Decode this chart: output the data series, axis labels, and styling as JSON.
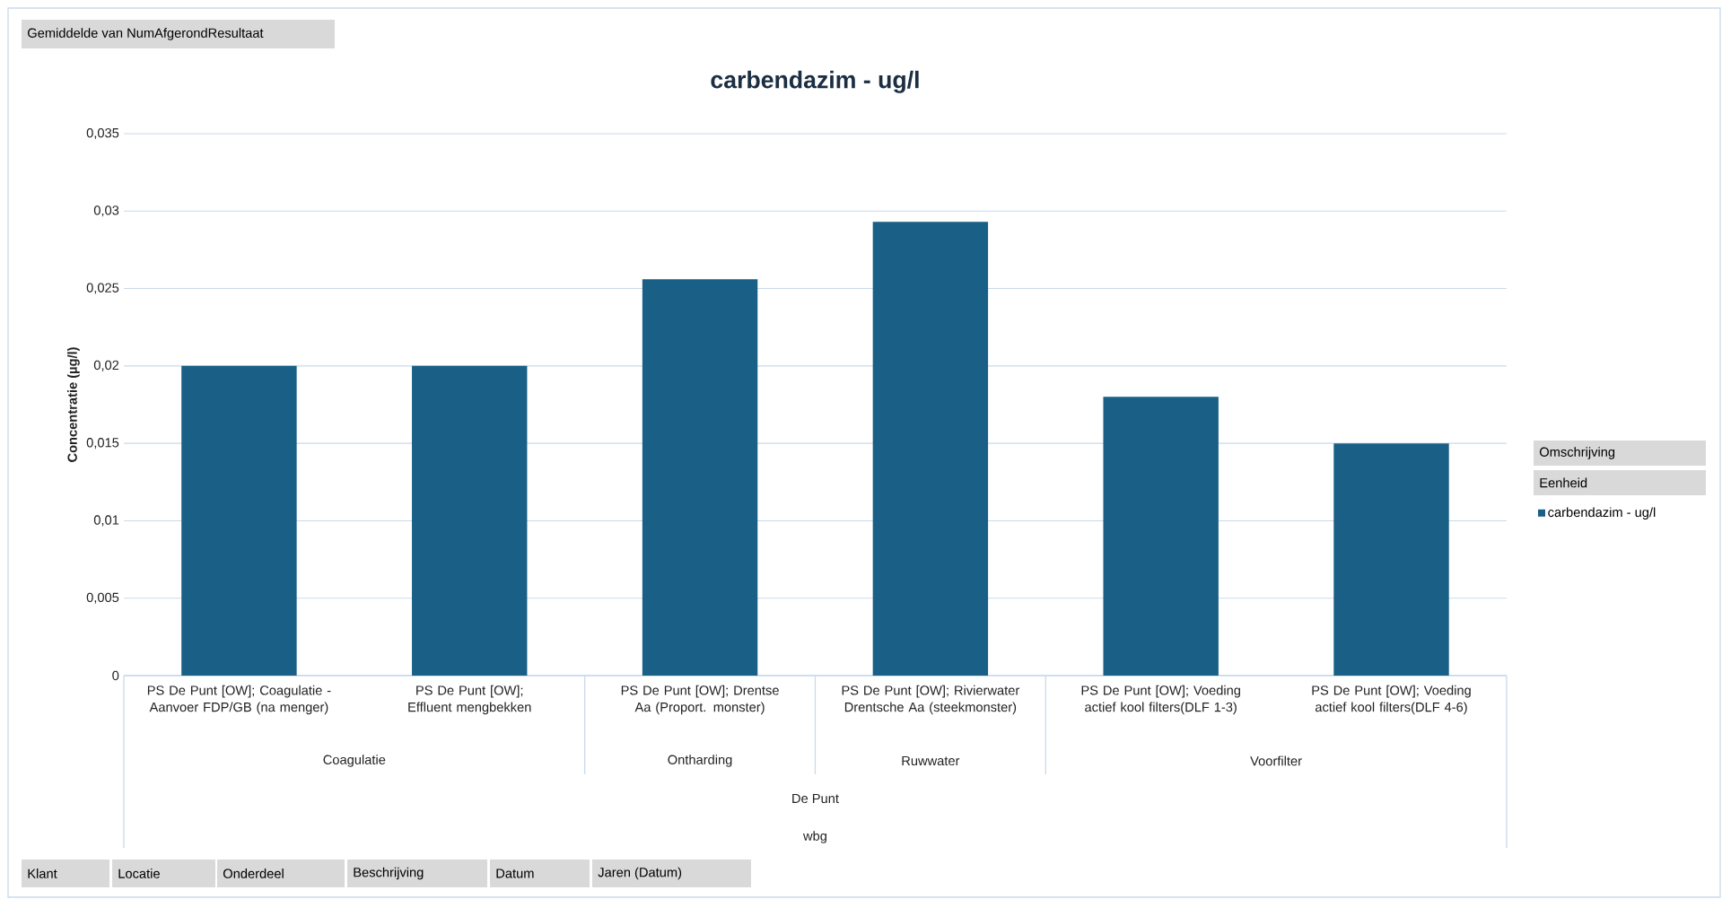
{
  "chart_data": {
    "type": "bar",
    "title": "carbendazim - ug/l",
    "ylabel": "Concentratie (µg/l)",
    "categories": [
      "PS De Punt [OW]; Coagulatie - Aanvoer FDP/GB (na menger)",
      "PS De Punt [OW]; Effluent mengbekken",
      "PS De Punt [OW]; Drentse Aa (Proport. monster)",
      "PS De Punt [OW]; Rivierwater Drentsche Aa (steekmonster)",
      "PS De Punt [OW]; Voeding actief kool filters(DLF 1-3)",
      "PS De Punt [OW]; Voeding actief kool filters(DLF 4-6)"
    ],
    "series": [
      {
        "name": "carbendazim - ug/l",
        "color": "#1a5f86",
        "values": [
          0.02,
          0.02,
          0.0256,
          0.0293,
          0.018,
          0.015
        ]
      }
    ],
    "ylim": [
      0,
      0.035
    ],
    "yticks": [
      {
        "value": 0,
        "label": "0"
      },
      {
        "value": 0.005,
        "label": "0,005"
      },
      {
        "value": 0.01,
        "label": "0,01"
      },
      {
        "value": 0.015,
        "label": "0,015"
      },
      {
        "value": 0.02,
        "label": "0,02"
      },
      {
        "value": 0.025,
        "label": "0,025"
      },
      {
        "value": 0.03,
        "label": "0,03"
      },
      {
        "value": 0.035,
        "label": "0,035"
      }
    ],
    "grid": "y",
    "legend": "right",
    "annotations": [
      "Gemiddelde van NumAfgerondResultaat",
      "Coagulatie",
      "Ontharding",
      "Ruwwater",
      "Voorfilter",
      "De Punt",
      "wbg",
      "Omschrijving",
      "Eenheid",
      "Klant",
      "Locatie",
      "Onderdeel",
      "Beschrijving",
      "Datum",
      "Jaren (Datum)"
    ]
  }
}
